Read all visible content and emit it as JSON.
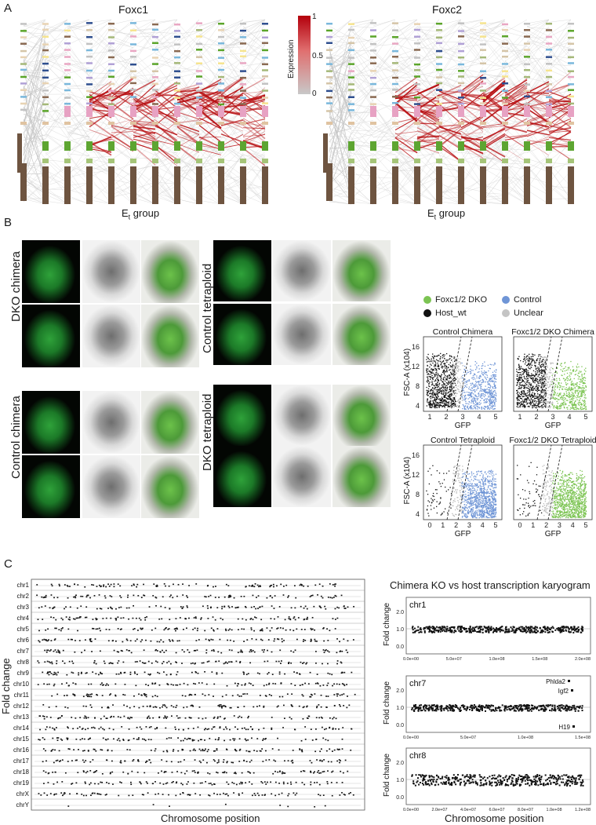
{
  "panelA": {
    "letter": "A",
    "left_title": "Foxc1",
    "right_title": "Foxc2",
    "xlabel_main": "E",
    "xlabel_sub": "t",
    "xlabel_rest": " group",
    "colorbar": {
      "label": "Expression",
      "ticks": [
        "1",
        "0.5",
        "0"
      ],
      "low": "#c8c8c8",
      "high": "#b3000c"
    }
  },
  "panelB": {
    "letter": "B",
    "row_labels": [
      "DKO chimera",
      "Control chimera",
      "Control tetraploid",
      "DKO tetraploid"
    ],
    "legend": [
      {
        "label": "Foxc1/2 DKO",
        "color": "#7cc453"
      },
      {
        "label": "Control",
        "color": "#6f95d6"
      },
      {
        "label": "Host_wt",
        "color": "#111111"
      },
      {
        "label": "Unclear",
        "color": "#c4c4c4"
      }
    ],
    "facs": {
      "ylabel": "FSC-A (x10",
      "ylabel_exp": "4",
      "ylabel_end": ")",
      "xlabel": "GFP",
      "yticks": [
        "4",
        "8",
        "12",
        "16"
      ],
      "xticks_top": [
        "1",
        "2",
        "3",
        "4",
        "5"
      ],
      "xticks_bottom": [
        "0",
        "1",
        "2",
        "3",
        "4",
        "5"
      ],
      "plots": [
        {
          "title": "Control Chimera",
          "sample": "control"
        },
        {
          "title": "Foxc1/2 DKO Chimera",
          "sample": "dko"
        },
        {
          "title": "Control Tetraploid",
          "sample": "control"
        },
        {
          "title": "Foxc1/2 DKO Tetraploid",
          "sample": "dko"
        }
      ]
    }
  },
  "panelC": {
    "letter": "C",
    "ylabel": "Fold change",
    "xlabel_left": "Chromosome position",
    "xlabel_right": "Chromosome position",
    "right_title": "Chimera KO vs host transcription karyogram",
    "chromosomes": [
      "chr1",
      "chr2",
      "chr3",
      "chr4",
      "chr5",
      "chr6",
      "chr7",
      "chr8",
      "chr9",
      "chr10",
      "chr11",
      "chr12",
      "chr13",
      "chr14",
      "chr15",
      "chr16",
      "chr17",
      "chr18",
      "chr19",
      "chrX",
      "chrY"
    ],
    "detail": [
      {
        "name": "chr1",
        "yticks": [
          "0.0",
          "1.0",
          "2.0"
        ],
        "xticks": [
          "0.0e+00",
          "5.0e+07",
          "1.0e+08",
          "1.5e+08",
          "2.0e+08"
        ],
        "genes": []
      },
      {
        "name": "chr7",
        "yticks": [
          "0.0",
          "1.0",
          "2.0"
        ],
        "xticks": [
          "0.0e+00",
          "5.0e+07",
          "1.0e+08",
          "1.5e+08"
        ],
        "genes": [
          "Phlda2",
          "Igf2",
          "H19"
        ]
      },
      {
        "name": "chr8",
        "yticks": [
          "0.0",
          "1.0",
          "2.0"
        ],
        "xticks": [
          "0.0e+00",
          "2.0e+07",
          "4.0e+07",
          "6.0e+07",
          "8.0e+07",
          "1.0e+08",
          "1.2e+08"
        ],
        "genes": []
      }
    ],
    "detail_ylabel": "Fold change"
  }
}
